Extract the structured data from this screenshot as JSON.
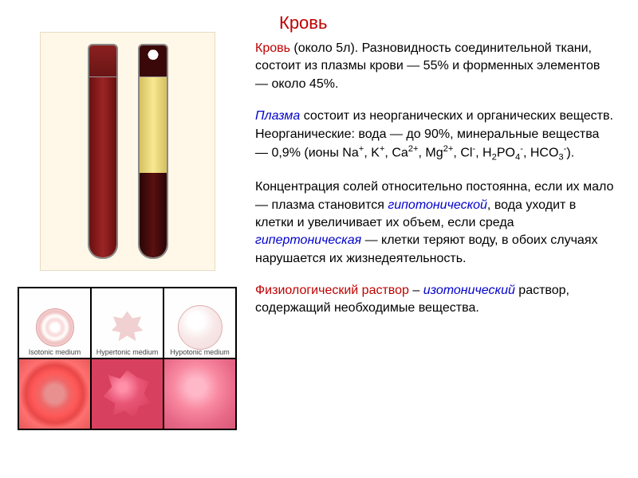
{
  "title": {
    "text": "Кровь",
    "color": "#c00000",
    "fontsize": 22
  },
  "colors": {
    "term_red": "#c00000",
    "term_blue": "#0000cc",
    "body_text": "#000000",
    "background": "#ffffff",
    "tube_panel_bg": "#fff8e8"
  },
  "tubes": {
    "tube1": {
      "top_color": "#7a1a1a",
      "body_color": "#7a1515"
    },
    "tube2": {
      "top_color": "#3a0808",
      "plasma_color": "#f0e080",
      "cells_color": "#3a0808"
    }
  },
  "cell_grid": {
    "labels": {
      "isotonic": "Isotonic medium",
      "hypertonic": "Hypertonic medium",
      "hypotonic": "Hypotonic medium"
    },
    "diagram_colors": {
      "fill": "#f0d0d0",
      "border": "#e0a0a0"
    },
    "photo_colors": {
      "iso": "#e85858",
      "hyper": "#e05070",
      "hypo": "#f088a0"
    }
  },
  "text": {
    "p1": {
      "t1": "Кровь",
      "t2": " (около 5л). Разновидность соединительной ткани, состоит из плазмы крови — 55% и форменных элементов — около 45%."
    },
    "p2": {
      "t1": "Плазма",
      "t2": " состоит из неорганических и органических веществ.",
      "t3": "Неорганические: вода — до 90%, минеральные вещества — 0,9% (ионы Na",
      "t4": ", K",
      "t5": ", Ca",
      "t6": ", Mg",
      "t7": ", Cl",
      "t8": ", H",
      "t9": "PO",
      "t10": ", HCO",
      "t11": ")."
    },
    "p3": {
      "t1": "Концентрация солей относительно постоянна, если их мало — плазма становится ",
      "t2": "гипотонической",
      "t3": ", вода уходит в клетки и увеличивает их объем, если среда ",
      "t4": "гипертоническая",
      "t5": " — клетки теряют воду, в обоих случаях нарушается их жизнедеятельность."
    },
    "p4": {
      "t1": "Физиологический раствор",
      "t2": " – ",
      "t3": "изотонический",
      "t4": " раствор, содержащий необходимые вещества."
    },
    "sup_plus": "+",
    "sup_2plus": "2+",
    "sup_minus": "-",
    "sub_2": "2",
    "sub_3": "3",
    "sub_4": "4"
  }
}
